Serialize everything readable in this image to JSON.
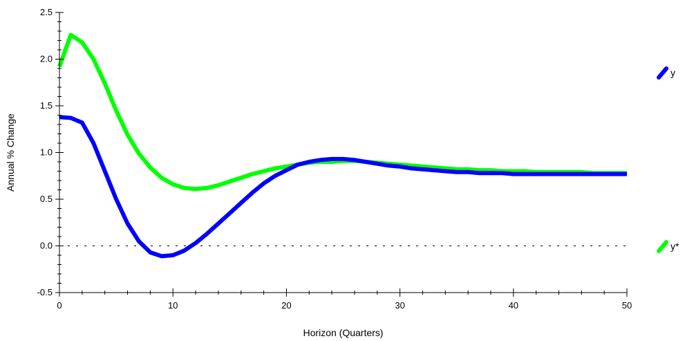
{
  "chart_data": {
    "type": "line",
    "title": "",
    "xlabel": "Horizon (Quarters)",
    "ylabel": "Annual % Change",
    "xlim": [
      0,
      50
    ],
    "ylim": [
      -0.5,
      2.5
    ],
    "xticks": [
      0,
      10,
      20,
      30,
      40,
      50
    ],
    "xtick_labels": [
      "0",
      "10",
      "20",
      "30",
      "40",
      "50"
    ],
    "yticks": [
      -0.5,
      0.0,
      0.5,
      1.0,
      1.5,
      2.0,
      2.5
    ],
    "ytick_labels": [
      "-0.5",
      "0.0",
      "0.5",
      "1.0",
      "1.5",
      "2.0",
      "2.5"
    ],
    "zero_line": true,
    "grid": false,
    "legend_position": "right",
    "series": [
      {
        "name": "y",
        "color": "#0000ff",
        "x": [
          0,
          1,
          2,
          3,
          4,
          5,
          6,
          7,
          8,
          9,
          10,
          11,
          12,
          13,
          14,
          15,
          16,
          17,
          18,
          19,
          20,
          21,
          22,
          23,
          24,
          25,
          26,
          27,
          28,
          29,
          30,
          31,
          32,
          33,
          34,
          35,
          36,
          37,
          38,
          39,
          40,
          41,
          42,
          43,
          44,
          45,
          46,
          47,
          48,
          49,
          50
        ],
        "values": [
          1.38,
          1.37,
          1.32,
          1.1,
          0.8,
          0.5,
          0.24,
          0.05,
          -0.07,
          -0.11,
          -0.1,
          -0.05,
          0.03,
          0.13,
          0.24,
          0.35,
          0.46,
          0.57,
          0.67,
          0.75,
          0.81,
          0.87,
          0.9,
          0.92,
          0.93,
          0.93,
          0.92,
          0.9,
          0.88,
          0.86,
          0.85,
          0.83,
          0.82,
          0.81,
          0.8,
          0.79,
          0.79,
          0.78,
          0.78,
          0.78,
          0.77,
          0.77,
          0.77,
          0.77,
          0.77,
          0.77,
          0.77,
          0.77,
          0.77,
          0.77,
          0.77
        ]
      },
      {
        "name": "y*",
        "color": "#00ff00",
        "x": [
          0,
          1,
          2,
          3,
          4,
          5,
          6,
          7,
          8,
          9,
          10,
          11,
          12,
          13,
          14,
          15,
          16,
          17,
          18,
          19,
          20,
          21,
          22,
          23,
          24,
          25,
          26,
          27,
          28,
          29,
          30,
          31,
          32,
          33,
          34,
          35,
          36,
          37,
          38,
          39,
          40,
          41,
          42,
          43,
          44,
          45,
          46,
          47,
          48,
          49,
          50
        ],
        "values": [
          1.92,
          2.26,
          2.18,
          2.0,
          1.74,
          1.45,
          1.19,
          0.99,
          0.84,
          0.73,
          0.66,
          0.62,
          0.61,
          0.62,
          0.65,
          0.69,
          0.73,
          0.77,
          0.8,
          0.83,
          0.85,
          0.87,
          0.89,
          0.9,
          0.9,
          0.91,
          0.91,
          0.9,
          0.89,
          0.88,
          0.87,
          0.86,
          0.85,
          0.84,
          0.83,
          0.82,
          0.82,
          0.81,
          0.81,
          0.8,
          0.8,
          0.8,
          0.79,
          0.79,
          0.79,
          0.79,
          0.79,
          0.78,
          0.78,
          0.78,
          0.78
        ]
      }
    ]
  }
}
